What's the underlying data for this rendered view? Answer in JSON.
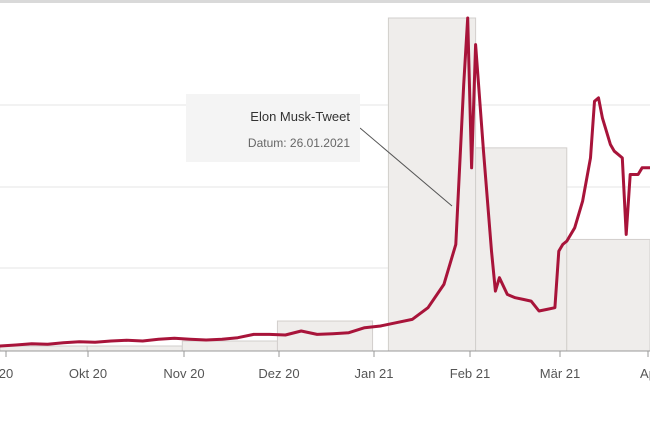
{
  "chart_data": {
    "type": "line",
    "title": "",
    "xlabel": "",
    "ylabel": "",
    "x_tick_labels": [
      "20",
      "Okt 20",
      "Nov 20",
      "Dez 20",
      "Jan 21",
      "Feb 21",
      "Mär 21",
      "Ap"
    ],
    "grid": true,
    "colors": {
      "line": "#a8143a",
      "bars": "#efedeb",
      "bar_stroke": "#d2cfcc",
      "grid": "#e6e6e6",
      "axis": "#999999"
    },
    "series": [
      {
        "values": [
          [
            0,
            0.015
          ],
          [
            4,
            0.018
          ],
          [
            8,
            0.022
          ],
          [
            12,
            0.02
          ],
          [
            16,
            0.025
          ],
          [
            20,
            0.028
          ],
          [
            24,
            0.026
          ],
          [
            28,
            0.03
          ],
          [
            32,
            0.032
          ],
          [
            36,
            0.03
          ],
          [
            40,
            0.035
          ],
          [
            44,
            0.038
          ],
          [
            48,
            0.035
          ],
          [
            52,
            0.033
          ],
          [
            56,
            0.035
          ],
          [
            60,
            0.04
          ],
          [
            64,
            0.05
          ],
          [
            68,
            0.05
          ],
          [
            72,
            0.048
          ],
          [
            76,
            0.06
          ],
          [
            80,
            0.05
          ],
          [
            84,
            0.052
          ],
          [
            88,
            0.055
          ],
          [
            92,
            0.07
          ],
          [
            96,
            0.075
          ],
          [
            100,
            0.085
          ],
          [
            104,
            0.095
          ],
          [
            108,
            0.13
          ],
          [
            112,
            0.2
          ],
          [
            115,
            0.32
          ],
          [
            117,
            0.8
          ],
          [
            118,
            1.0
          ],
          [
            119,
            0.55
          ],
          [
            120,
            0.92
          ],
          [
            122,
            0.6
          ],
          [
            124,
            0.3
          ],
          [
            125,
            0.18
          ],
          [
            126,
            0.22
          ],
          [
            128,
            0.17
          ],
          [
            130,
            0.16
          ],
          [
            132,
            0.155
          ],
          [
            134,
            0.15
          ],
          [
            136,
            0.12
          ],
          [
            138,
            0.125
          ],
          [
            140,
            0.13
          ],
          [
            141,
            0.3
          ],
          [
            142,
            0.32
          ],
          [
            143,
            0.33
          ],
          [
            145,
            0.37
          ],
          [
            147,
            0.45
          ],
          [
            149,
            0.58
          ],
          [
            150,
            0.75
          ],
          [
            151,
            0.76
          ],
          [
            152,
            0.7
          ],
          [
            154,
            0.62
          ],
          [
            155,
            0.6
          ],
          [
            157,
            0.58
          ],
          [
            158,
            0.35
          ],
          [
            159,
            0.53
          ],
          [
            161,
            0.53
          ],
          [
            162,
            0.55
          ],
          [
            164,
            0.55
          ]
        ]
      }
    ],
    "bars": [
      {
        "x0": 0,
        "x1": 22,
        "value": 0.015
      },
      {
        "x0": 22,
        "x1": 46,
        "value": 0.015
      },
      {
        "x0": 46,
        "x1": 70,
        "value": 0.03
      },
      {
        "x0": 70,
        "x1": 94,
        "value": 0.09
      },
      {
        "x0": 98,
        "x1": 120,
        "value": 1.0
      },
      {
        "x0": 120,
        "x1": 143,
        "value": 0.61
      },
      {
        "x0": 143,
        "x1": 164,
        "value": 0.335
      }
    ],
    "annotation": {
      "title": "Elon Musk-Tweet",
      "subtitle": "Datum: 26.01.2021",
      "x": 115,
      "y": 0.44
    }
  }
}
